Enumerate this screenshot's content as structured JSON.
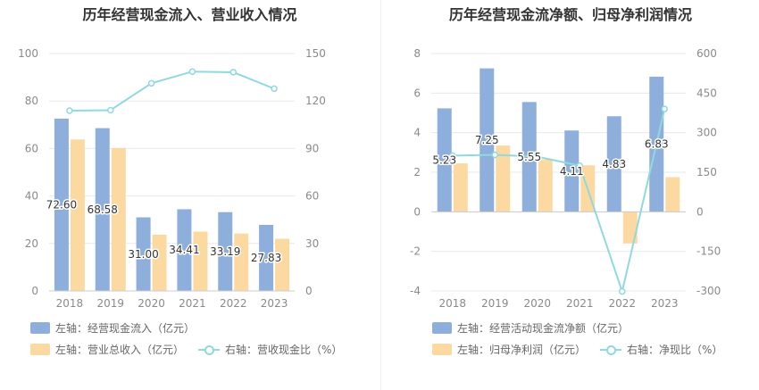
{
  "colors": {
    "blue": "#8eaedc",
    "orange": "#fcd9a0",
    "teal": "#8fd9df",
    "grid": "#e8e8e8",
    "axis": "#cccccc"
  },
  "chart_data": [
    {
      "type": "bar",
      "title": "历年经营现金流入、营业收入情况",
      "categories": [
        "2018",
        "2019",
        "2020",
        "2021",
        "2022",
        "2023"
      ],
      "left_axis": {
        "ylim": [
          0,
          100
        ],
        "ticks": [
          "0",
          "20",
          "40",
          "60",
          "80",
          "100"
        ]
      },
      "right_axis": {
        "ylim": [
          0,
          150
        ],
        "ticks": [
          "0",
          "30",
          "60",
          "90",
          "120",
          "150"
        ]
      },
      "series": [
        {
          "name": "左轴：经营现金流入（亿元）",
          "type": "bar",
          "axis": "left",
          "values": [
            72.6,
            68.58,
            31.0,
            34.41,
            33.19,
            27.83
          ],
          "labels": [
            "72.60",
            "68.58",
            "31.00",
            "34.41",
            "33.19",
            "27.83"
          ]
        },
        {
          "name": "左轴：营业总收入（亿元）",
          "type": "bar",
          "axis": "left",
          "values": [
            63.8,
            60.2,
            23.7,
            25.0,
            24.2,
            22.0
          ]
        },
        {
          "name": "右轴：营收现金比（%）",
          "type": "line",
          "axis": "right",
          "values": [
            113.9,
            114.2,
            131.2,
            138.6,
            138.2,
            127.8
          ]
        }
      ],
      "legend_placement": "bottom"
    },
    {
      "type": "bar",
      "title": "历年经营现金流净额、归母净利润情况",
      "categories": [
        "2018",
        "2019",
        "2020",
        "2021",
        "2022",
        "2023"
      ],
      "left_axis": {
        "ylim": [
          -4,
          8
        ],
        "ticks": [
          "-4",
          "-2",
          "0",
          "2",
          "4",
          "6",
          "8"
        ]
      },
      "right_axis": {
        "ylim": [
          -300,
          600
        ],
        "ticks": [
          "-300",
          "-150",
          "0",
          "150",
          "300",
          "450",
          "600"
        ]
      },
      "series": [
        {
          "name": "左轴：经营活动现金流净额（亿元）",
          "type": "bar",
          "axis": "left",
          "values": [
            5.23,
            7.25,
            5.55,
            4.11,
            4.83,
            6.83
          ],
          "labels": [
            "5.23",
            "7.25",
            "5.55",
            "4.11",
            "4.83",
            "6.83"
          ]
        },
        {
          "name": "左轴：归母净利润（亿元）",
          "type": "bar",
          "axis": "left",
          "values": [
            2.45,
            3.35,
            2.65,
            2.35,
            -1.6,
            1.75
          ]
        },
        {
          "name": "右轴：净现比（%）",
          "type": "line",
          "axis": "right",
          "values": [
            213,
            216,
            209,
            175,
            -302,
            390
          ]
        }
      ],
      "legend_placement": "bottom"
    }
  ]
}
